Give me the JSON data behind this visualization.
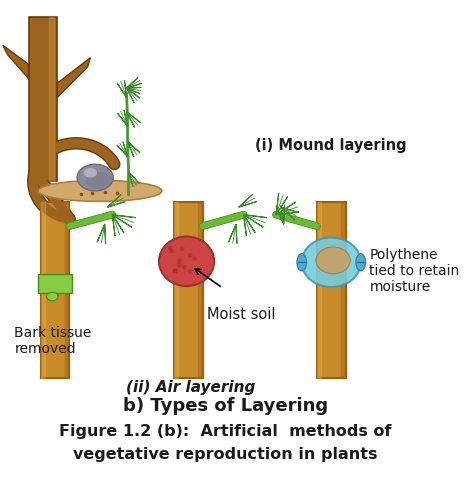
{
  "title_b": "b) Types of Layering",
  "caption_line1": "Figure 1.2 (b):  Artificial  methods of",
  "caption_line2": "vegetative reproduction in plants",
  "label_mound": "(i) Mound layering",
  "label_air": "(ii) Air layering",
  "label_bark": "Bark tissue\nremoved",
  "label_moist": "Moist soil",
  "label_poly": "Polythene\ntied to retain\nmoisture",
  "bg_color": "#ffffff",
  "trunk_color": "#9B6520",
  "trunk_edge": "#6B3A08",
  "stem_color": "#C88B2A",
  "stem_edge": "#9A6010",
  "leaf_color": "#5DB04A",
  "leaf_dark": "#3A8A2A",
  "leaf_light": "#7DC85A",
  "soil_color": "#D2A96A",
  "soil_edge": "#AA8040",
  "stone_color": "#8A8A9A",
  "stone_edge": "#6A6A7A",
  "moist_ball_color": "#CC4444",
  "moist_ball_edge": "#993333",
  "poly_color": "#77CCDD",
  "poly_edge": "#4499AA",
  "poly_inner": "#C8A060",
  "bark_ring_color": "#88CC44",
  "bark_ring_edge": "#4A8A20",
  "text_color": "#1a1a1a",
  "title_fontsize": 13,
  "caption_fontsize": 11.5,
  "label_fontsize": 10,
  "label_air_fontsize": 11
}
